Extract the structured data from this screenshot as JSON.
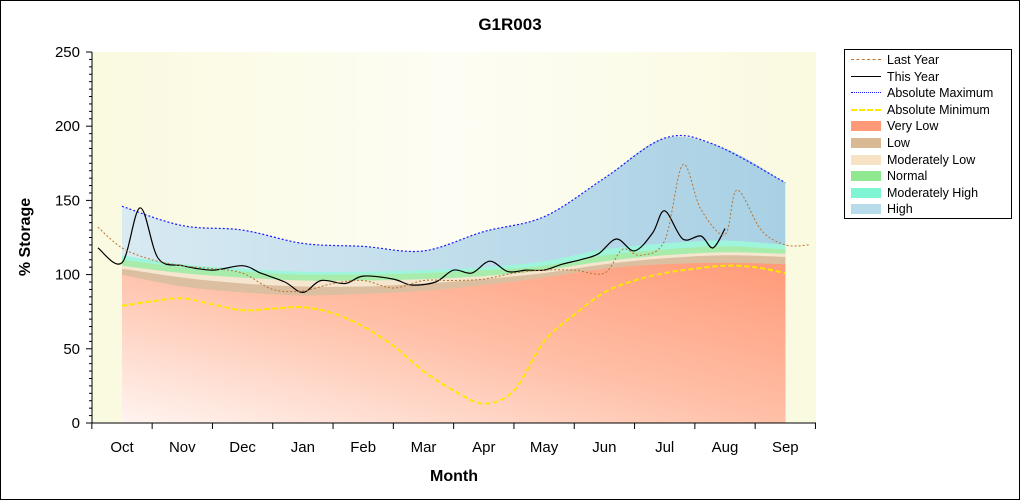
{
  "chart_data": {
    "type": "area",
    "title": "G1R003",
    "xlabel": "Month",
    "ylabel": "% Storage",
    "ylim": [
      0,
      250
    ],
    "yticks": [
      0,
      50,
      100,
      150,
      200,
      250
    ],
    "categories": [
      "Oct",
      "Nov",
      "Dec",
      "Jan",
      "Feb",
      "Mar",
      "Apr",
      "May",
      "Jun",
      "Jul",
      "Aug",
      "Sep"
    ],
    "grid": false,
    "legend_position": "right",
    "legend": [
      "Last Year",
      "This Year",
      "Absolute Maximum",
      "Absolute Minimum",
      "Very Low",
      "Low",
      "Moderately Low",
      "Normal",
      "Moderately High",
      "High"
    ],
    "colors": {
      "last_year": "#b87333",
      "this_year": "#000000",
      "abs_max": "#0000ff",
      "abs_min": "#ffff00",
      "very_low": "#ff8c69",
      "low": "#d2b48c",
      "moderately_low": "#ffe4c4",
      "normal": "#90ee90",
      "moderately_high": "#7fffd4",
      "high": "#add8e6"
    },
    "bands": {
      "x": [
        "Oct",
        "Nov",
        "Dec",
        "Jan",
        "Feb",
        "Mar",
        "Apr",
        "May",
        "Jun",
        "Jul",
        "Aug",
        "Sep"
      ],
      "very_low": [
        100,
        92,
        88,
        86,
        87,
        89,
        93,
        98,
        104,
        107,
        108,
        107
      ],
      "low": [
        104,
        98,
        94,
        92,
        92,
        94,
        97,
        101,
        107,
        111,
        113,
        112
      ],
      "moderately_low": [
        106,
        101,
        98,
        96,
        96,
        97,
        99,
        103,
        109,
        113,
        115,
        114
      ],
      "normal": [
        110,
        105,
        102,
        100,
        100,
        101,
        103,
        106,
        113,
        117,
        119,
        117
      ],
      "moderately_high": [
        113,
        107,
        104,
        102,
        102,
        103,
        105,
        109,
        117,
        121,
        123,
        120
      ],
      "high": [
        146,
        133,
        130,
        121,
        119,
        116,
        129,
        139,
        165,
        192,
        185,
        162
      ]
    },
    "series": [
      {
        "name": "Absolute Maximum",
        "x": [
          0,
          1,
          2,
          3,
          4,
          5,
          6,
          7,
          8,
          9,
          9.8,
          11
        ],
        "values": [
          146,
          133,
          130,
          121,
          119,
          116,
          129,
          139,
          165,
          192,
          188,
          162
        ]
      },
      {
        "name": "Absolute Minimum",
        "x": [
          0,
          0.5,
          1,
          1.5,
          2,
          2.5,
          3,
          3.5,
          4,
          4.5,
          5,
          5.5,
          6,
          6.5,
          7,
          7.5,
          8,
          8.5,
          9,
          9.5,
          10,
          10.5,
          11
        ],
        "values": [
          79,
          82,
          84,
          80,
          76,
          77,
          78,
          74,
          65,
          52,
          35,
          22,
          13,
          22,
          55,
          73,
          88,
          96,
          101,
          104,
          106,
          105,
          101
        ]
      },
      {
        "name": "This Year",
        "x": [
          -0.4,
          0,
          0.3,
          0.6,
          1,
          1.5,
          2,
          2.3,
          2.7,
          3,
          3.3,
          3.7,
          4,
          4.5,
          4.8,
          5.2,
          5.5,
          5.8,
          6.1,
          6.4,
          6.7,
          7,
          7.3,
          7.6,
          7.9,
          8.2,
          8.5,
          8.8,
          9,
          9.3,
          9.6,
          9.8,
          10
        ],
        "values": [
          118,
          108,
          145,
          111,
          106,
          103,
          106,
          101,
          95,
          88,
          96,
          94,
          99,
          97,
          93,
          95,
          103,
          101,
          109,
          102,
          103,
          103,
          107,
          110,
          114,
          124,
          116,
          128,
          143,
          124,
          126,
          118,
          131
        ]
      },
      {
        "name": "Last Year",
        "x": [
          -0.4,
          0,
          0.5,
          1,
          1.5,
          2,
          2.5,
          3,
          3.5,
          4,
          4.5,
          5,
          5.5,
          6,
          6.5,
          7,
          7.5,
          8,
          8.3,
          8.6,
          9,
          9.3,
          9.6,
          10,
          10.2,
          10.6,
          11,
          11.4
        ],
        "values": [
          132,
          118,
          110,
          106,
          104,
          101,
          90,
          89,
          94,
          96,
          91,
          96,
          96,
          97,
          101,
          103,
          103,
          101,
          117,
          113,
          123,
          174,
          144,
          127,
          157,
          130,
          120,
          120
        ]
      }
    ]
  }
}
